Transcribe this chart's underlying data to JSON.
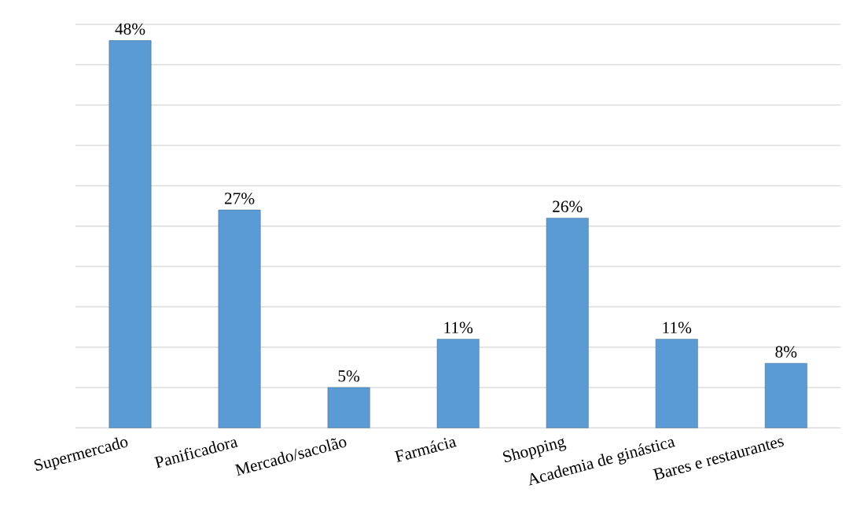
{
  "chart_data": {
    "type": "bar",
    "categories": [
      "Supermercado",
      "Panificadora",
      "Mercado/sacolão",
      "Farmácia",
      "Shopping",
      "Academia de ginástica",
      "Bares e restaurantes"
    ],
    "values": [
      48,
      27,
      5,
      11,
      26,
      11,
      8
    ],
    "value_labels": [
      "48%",
      "27%",
      "5%",
      "11%",
      "26%",
      "11%",
      "8%"
    ],
    "color": "#5b9bd5",
    "ylim": [
      0,
      50
    ],
    "yticks": [
      {
        "value": 0,
        "label": null
      },
      {
        "value": 5,
        "label": null
      },
      {
        "value": 10,
        "label": null
      },
      {
        "value": 15,
        "label": null
      },
      {
        "value": 20,
        "label": null
      },
      {
        "value": 25,
        "label": null
      },
      {
        "value": 30,
        "label": null
      },
      {
        "value": 35,
        "label": null
      },
      {
        "value": 40,
        "label": null
      },
      {
        "value": 45,
        "label": null
      },
      {
        "value": 50,
        "label": null
      }
    ],
    "grid": "y",
    "tick_labels": "x"
  }
}
